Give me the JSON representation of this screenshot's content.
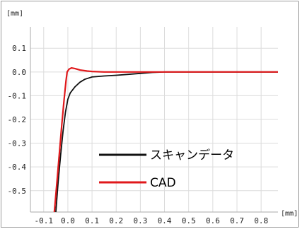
{
  "chart_data": {
    "type": "line",
    "title": "",
    "xlabel": "",
    "ylabel": "",
    "x_unit": "[mm]",
    "y_unit": "[mm]",
    "xlim": [
      -0.155,
      0.87
    ],
    "ylim": [
      -0.59,
      0.19
    ],
    "x_ticks": [
      "-0.1",
      "0.0",
      "0.1",
      "0.2",
      "0.3",
      "0.4",
      "0.5",
      "0.6",
      "0.7",
      "0.8"
    ],
    "x_tick_values": [
      -0.1,
      0.0,
      0.1,
      0.2,
      0.3,
      0.4,
      0.5,
      0.6,
      0.7,
      0.8
    ],
    "y_ticks": [
      "0.1",
      "0.0",
      "-0.1",
      "-0.2",
      "-0.3",
      "-0.4",
      "-0.5"
    ],
    "y_tick_values": [
      0.1,
      0.0,
      -0.1,
      -0.2,
      -0.3,
      -0.4,
      -0.5
    ],
    "grid": true,
    "legend_position": "bottom-center",
    "series": [
      {
        "name": "スキャンデータ",
        "color": "#111111",
        "points": [
          [
            -0.05,
            -0.59
          ],
          [
            -0.04,
            -0.46
          ],
          [
            -0.03,
            -0.35
          ],
          [
            -0.02,
            -0.25
          ],
          [
            -0.01,
            -0.17
          ],
          [
            0.0,
            -0.115
          ],
          [
            0.01,
            -0.088
          ],
          [
            0.03,
            -0.062
          ],
          [
            0.05,
            -0.043
          ],
          [
            0.07,
            -0.031
          ],
          [
            0.1,
            -0.021
          ],
          [
            0.15,
            -0.017
          ],
          [
            0.2,
            -0.014
          ],
          [
            0.25,
            -0.01
          ],
          [
            0.3,
            -0.006
          ],
          [
            0.35,
            -0.002
          ],
          [
            0.4,
            0.0
          ],
          [
            0.5,
            0.0
          ],
          [
            0.6,
            0.0
          ],
          [
            0.7,
            0.0
          ],
          [
            0.8,
            0.0
          ],
          [
            0.87,
            0.0
          ]
        ]
      },
      {
        "name": "CAD",
        "color": "#e0181b",
        "points": [
          [
            -0.056,
            -0.59
          ],
          [
            -0.045,
            -0.46
          ],
          [
            -0.035,
            -0.34
          ],
          [
            -0.025,
            -0.22
          ],
          [
            -0.015,
            -0.11
          ],
          [
            -0.008,
            -0.04
          ],
          [
            -0.003,
            0.0
          ],
          [
            0.005,
            0.012
          ],
          [
            0.015,
            0.017
          ],
          [
            0.03,
            0.014
          ],
          [
            0.05,
            0.008
          ],
          [
            0.08,
            0.004
          ],
          [
            0.1,
            0.002
          ],
          [
            0.15,
            0.0
          ],
          [
            0.2,
            0.0
          ],
          [
            0.3,
            0.0
          ],
          [
            0.4,
            0.0
          ],
          [
            0.5,
            0.0
          ],
          [
            0.6,
            0.0
          ],
          [
            0.7,
            0.0
          ],
          [
            0.8,
            0.0
          ],
          [
            0.87,
            0.0
          ]
        ]
      }
    ]
  }
}
